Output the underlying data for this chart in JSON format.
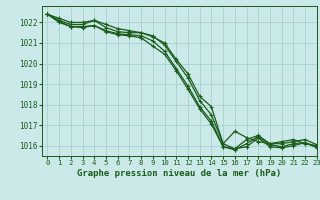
{
  "title": "Graphe pression niveau de la mer (hPa)",
  "bg_color": "#cce9e9",
  "grid_color": "#aad4d4",
  "line_color": "#1a5c1a",
  "xlim": [
    -0.5,
    23
  ],
  "ylim": [
    1015.5,
    1022.8
  ],
  "yticks": [
    1016,
    1017,
    1018,
    1019,
    1020,
    1021,
    1022
  ],
  "xticks": [
    0,
    1,
    2,
    3,
    4,
    5,
    6,
    7,
    8,
    9,
    10,
    11,
    12,
    13,
    14,
    15,
    16,
    17,
    18,
    19,
    20,
    21,
    22,
    23
  ],
  "series": [
    [
      1022.4,
      1022.2,
      1022.0,
      1022.0,
      1022.1,
      1021.9,
      1021.7,
      1021.6,
      1021.5,
      1021.3,
      1021.0,
      1020.2,
      1019.5,
      1018.4,
      1017.9,
      1016.1,
      1016.7,
      1016.4,
      1016.2,
      1016.1,
      1016.2,
      1016.3,
      1016.1,
      1016.0
    ],
    [
      1022.4,
      1022.1,
      1021.9,
      1021.9,
      1022.1,
      1021.75,
      1021.55,
      1021.5,
      1021.5,
      1021.35,
      1020.9,
      1020.1,
      1019.3,
      1018.2,
      1017.5,
      1016.1,
      1015.85,
      1016.3,
      1016.5,
      1016.1,
      1016.1,
      1016.2,
      1016.3,
      1016.05
    ],
    [
      1022.4,
      1022.05,
      1021.8,
      1021.8,
      1021.85,
      1021.6,
      1021.45,
      1021.4,
      1021.35,
      1021.1,
      1020.6,
      1019.75,
      1018.9,
      1017.9,
      1017.2,
      1015.95,
      1015.8,
      1016.1,
      1016.45,
      1016.05,
      1015.95,
      1016.1,
      1016.15,
      1015.95
    ],
    [
      1022.4,
      1022.0,
      1021.8,
      1021.75,
      1021.85,
      1021.55,
      1021.4,
      1021.35,
      1021.25,
      1020.85,
      1020.45,
      1019.65,
      1018.75,
      1017.8,
      1017.05,
      1015.95,
      1015.85,
      1015.95,
      1016.38,
      1015.95,
      1015.9,
      1016.0,
      1016.15,
      1015.9
    ]
  ],
  "ylabel_fontsize": 5.5,
  "xlabel_fontsize": 6.5,
  "tick_fontsize": 5.2,
  "linewidth": 0.9,
  "markersize": 3.0,
  "markeredgewidth": 0.8
}
